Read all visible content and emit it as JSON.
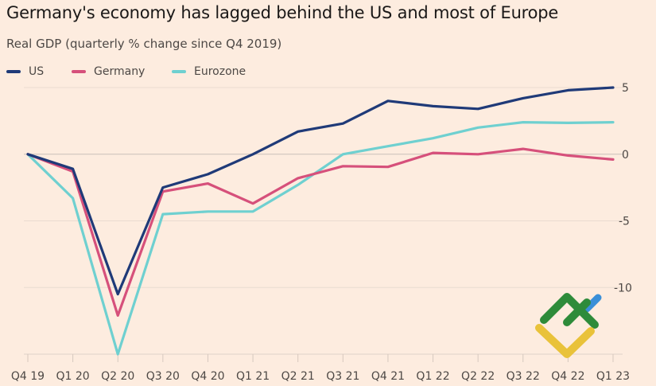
{
  "chart_data": {
    "type": "line",
    "title": "Germany's economy has lagged behind the US and most of Europe",
    "subtitle": "Real GDP (quarterly % change since Q4 2019)",
    "xlabel": "",
    "ylabel": "",
    "categories": [
      "Q4 19",
      "Q1 20",
      "Q2 20",
      "Q3 20",
      "Q4 20",
      "Q1 21",
      "Q2 21",
      "Q3 21",
      "Q4 21",
      "Q1 22",
      "Q2 22",
      "Q3 22",
      "Q4 22",
      "Q1 23"
    ],
    "series": [
      {
        "name": "US",
        "color": "#1f3a78",
        "values": [
          0,
          -1.1,
          -10.5,
          -2.5,
          -1.5,
          0.0,
          1.7,
          2.3,
          4.0,
          3.6,
          3.4,
          4.2,
          4.8,
          5.0
        ]
      },
      {
        "name": "Germany",
        "color": "#d6507b",
        "values": [
          0,
          -1.3,
          -12.1,
          -2.8,
          -2.2,
          -3.7,
          -1.8,
          -0.9,
          -0.95,
          0.1,
          0.0,
          0.4,
          -0.1,
          -0.4
        ]
      },
      {
        "name": "Eurozone",
        "color": "#6fd0d0",
        "values": [
          0,
          -3.3,
          -15.0,
          -4.5,
          -4.3,
          -4.3,
          -2.3,
          0.0,
          0.6,
          1.2,
          2.0,
          2.4,
          2.35,
          2.4
        ]
      }
    ],
    "ylim": [
      -15,
      5
    ],
    "yticks": [
      5,
      0,
      -5,
      -10
    ],
    "ytick_labels": [
      "5",
      "0",
      "-5",
      "-10"
    ],
    "grid": true,
    "legend_position": "top-left",
    "yaxis_side": "right"
  },
  "watermark": {
    "icon": "broker-logo-icon",
    "colors": {
      "green": "#2e8b3a",
      "blue": "#3a8fd8",
      "yellow": "#e9c23a"
    }
  }
}
